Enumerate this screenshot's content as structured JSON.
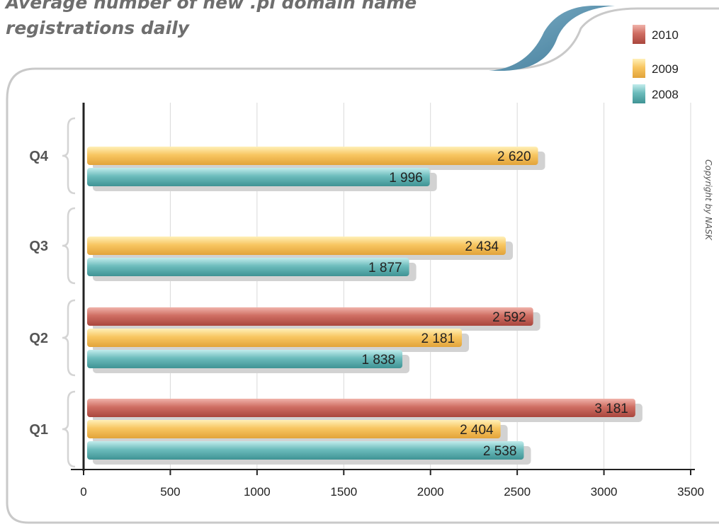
{
  "chart_data": {
    "type": "bar",
    "orientation": "horizontal",
    "title": "Average number of new .pl domain name registrations daily",
    "categories": [
      "Q1",
      "Q2",
      "Q3",
      "Q4"
    ],
    "series": [
      {
        "name": "2010",
        "color": "#c8645a",
        "values": [
          3181,
          2592,
          null,
          null
        ],
        "labels": [
          "3 181",
          "2 592",
          "",
          ""
        ]
      },
      {
        "name": "2009",
        "color": "#f5c35a",
        "values": [
          2404,
          2181,
          2434,
          2620
        ],
        "labels": [
          "2 404",
          "2 181",
          "2 434",
          "2 620"
        ]
      },
      {
        "name": "2008",
        "color": "#5fb4b4",
        "values": [
          2538,
          1838,
          1877,
          1996
        ],
        "labels": [
          "2 538",
          "1 838",
          "1 877",
          "1 996"
        ]
      }
    ],
    "xlim": [
      0,
      3500
    ],
    "xticks": [
      0,
      500,
      1000,
      1500,
      2000,
      2500,
      3000,
      3500
    ],
    "grid": true,
    "legend": "top-right"
  },
  "copyright": "Copyright by NASK"
}
